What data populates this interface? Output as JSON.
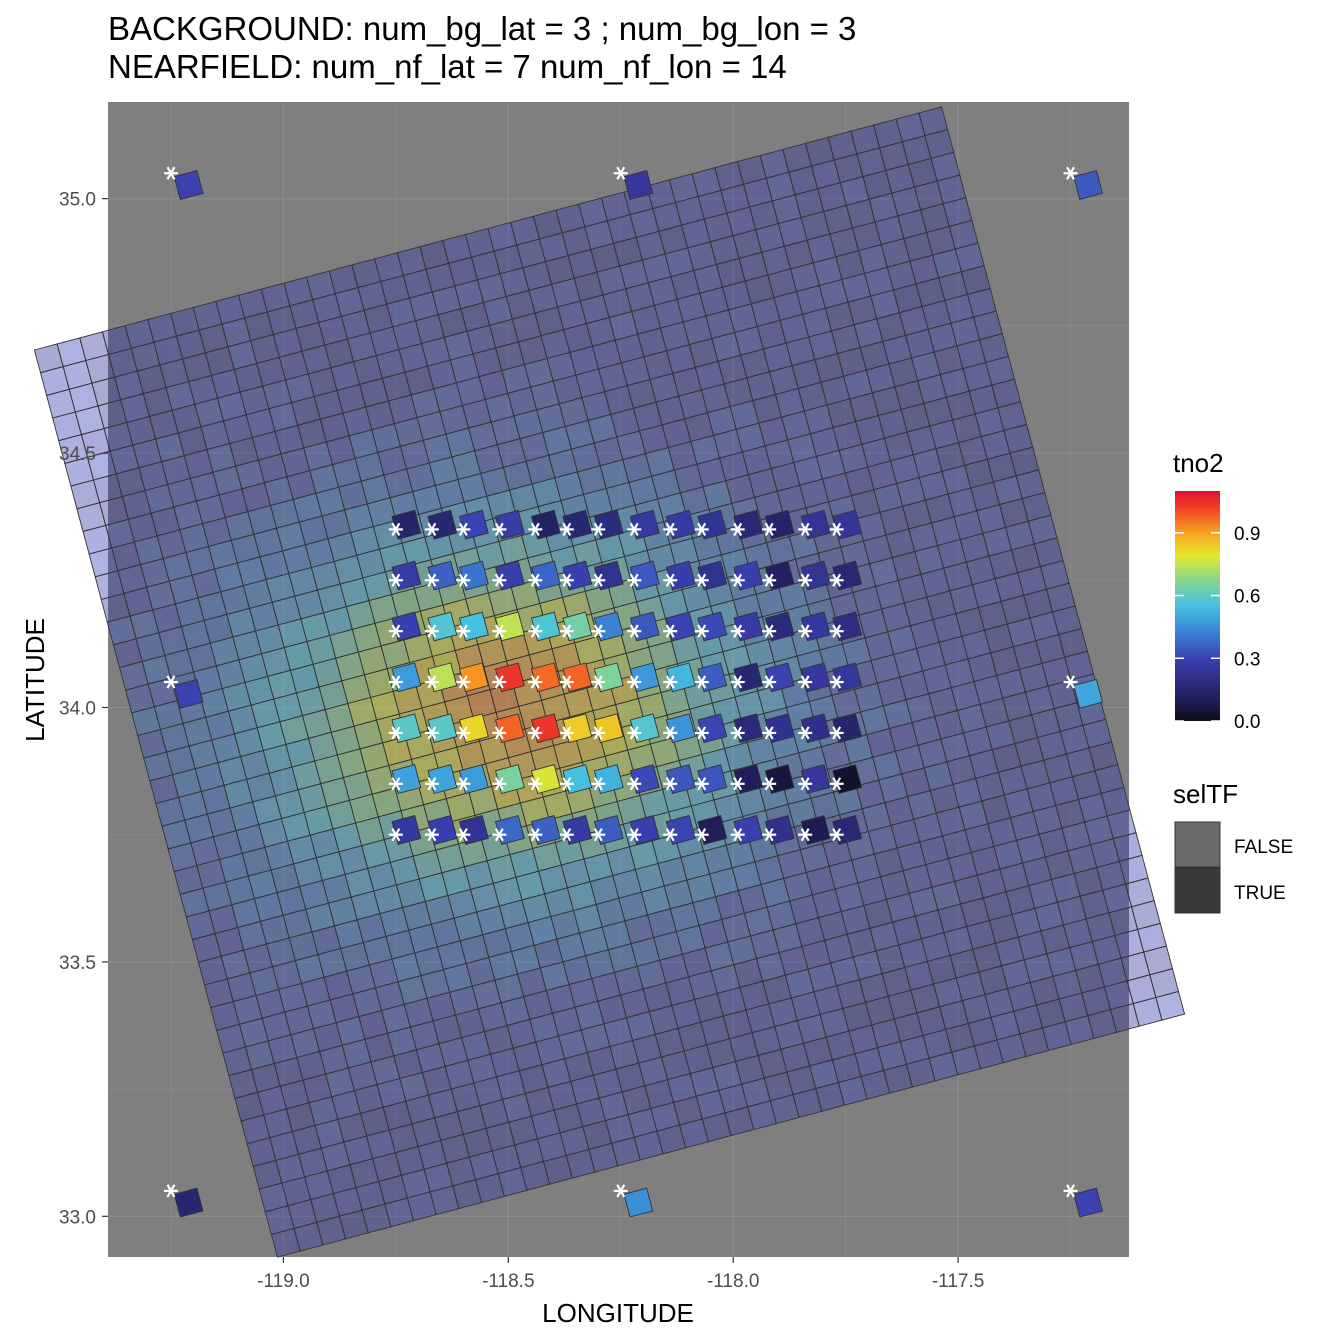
{
  "chart_data": {
    "type": "heatmap",
    "title": "BACKGROUND: num_bg_lat = 3 ; num_bg_lon = 3",
    "subtitle": "NEARFIELD: num_nf_lat = 7 num_nf_lon = 14",
    "xlabel": "LONGITUDE",
    "ylabel": "LATITUDE",
    "xlim": [
      -119.39,
      -117.12
    ],
    "ylim": [
      32.92,
      35.19
    ],
    "x_ticks": [
      -119.0,
      -118.5,
      -118.0,
      -117.5
    ],
    "x_tick_labels": [
      "-119.0",
      "-118.5",
      "-118.0",
      "-117.5"
    ],
    "y_ticks": [
      33.0,
      33.5,
      34.0,
      34.5,
      35.0
    ],
    "y_tick_labels": [
      "33.0",
      "33.5",
      "34.0",
      "34.5",
      "35.0"
    ],
    "grid": true,
    "background_color": "#7f7f7f",
    "grid_color": "#8c8c8c",
    "cell_border_color": "#333333",
    "grid_geometry": {
      "rows": 40,
      "cols": 40,
      "corner_top_left": [
        -119.27,
        35.05
      ],
      "corner_top_right": [
        -117.28,
        35.05
      ],
      "corner_bottom_left": [
        -119.27,
        33.05
      ],
      "corner_bottom_right": [
        -117.28,
        33.05
      ],
      "rotation_note": "swath tilted counter-clockwise by about 15 degrees"
    },
    "nearfield": {
      "lat_values": [
        34.35,
        34.25,
        34.15,
        34.05,
        33.95,
        33.85,
        33.75
      ],
      "lon_values": [
        -118.75,
        -118.67,
        -118.6,
        -118.52,
        -118.44,
        -118.37,
        -118.3,
        -118.22,
        -118.14,
        -118.07,
        -117.99,
        -117.92,
        -117.84,
        -117.77
      ]
    },
    "background_markers": [
      {
        "lon": -119.25,
        "lat": 35.05,
        "tno2": 0.3
      },
      {
        "lon": -118.25,
        "lat": 35.05,
        "tno2": 0.25
      },
      {
        "lon": -117.25,
        "lat": 35.05,
        "tno2": 0.35
      },
      {
        "lon": -119.25,
        "lat": 34.05,
        "tno2": 0.3
      },
      {
        "lon": -117.25,
        "lat": 34.05,
        "tno2": 0.5
      },
      {
        "lon": -119.25,
        "lat": 33.05,
        "tno2": 0.15
      },
      {
        "lon": -118.25,
        "lat": 33.05,
        "tno2": 0.45
      },
      {
        "lon": -117.25,
        "lat": 33.05,
        "tno2": 0.3
      }
    ],
    "colorscale": {
      "variable": "tno2",
      "min": 0.0,
      "max": 1.1,
      "ticks": [
        0.0,
        0.3,
        0.6,
        0.9
      ],
      "tick_labels": [
        "0.0",
        "0.3",
        "0.6",
        "0.9"
      ],
      "stops": [
        [
          0.0,
          "#0d0d1a"
        ],
        [
          0.1,
          "#221f5e"
        ],
        [
          0.27,
          "#3b3fb0"
        ],
        [
          0.4,
          "#3a8ad8"
        ],
        [
          0.5,
          "#45c0e0"
        ],
        [
          0.62,
          "#8ed889"
        ],
        [
          0.72,
          "#e6e82a"
        ],
        [
          0.82,
          "#f9a020"
        ],
        [
          0.92,
          "#f04526"
        ],
        [
          1.0,
          "#e0102f"
        ]
      ]
    },
    "legend_seltf": {
      "title": "selTF",
      "entries": [
        {
          "label": "FALSE",
          "color": "#6b6b6b"
        },
        {
          "label": "TRUE",
          "color": "#3a3a3a"
        }
      ]
    },
    "legend_placement": "right"
  }
}
